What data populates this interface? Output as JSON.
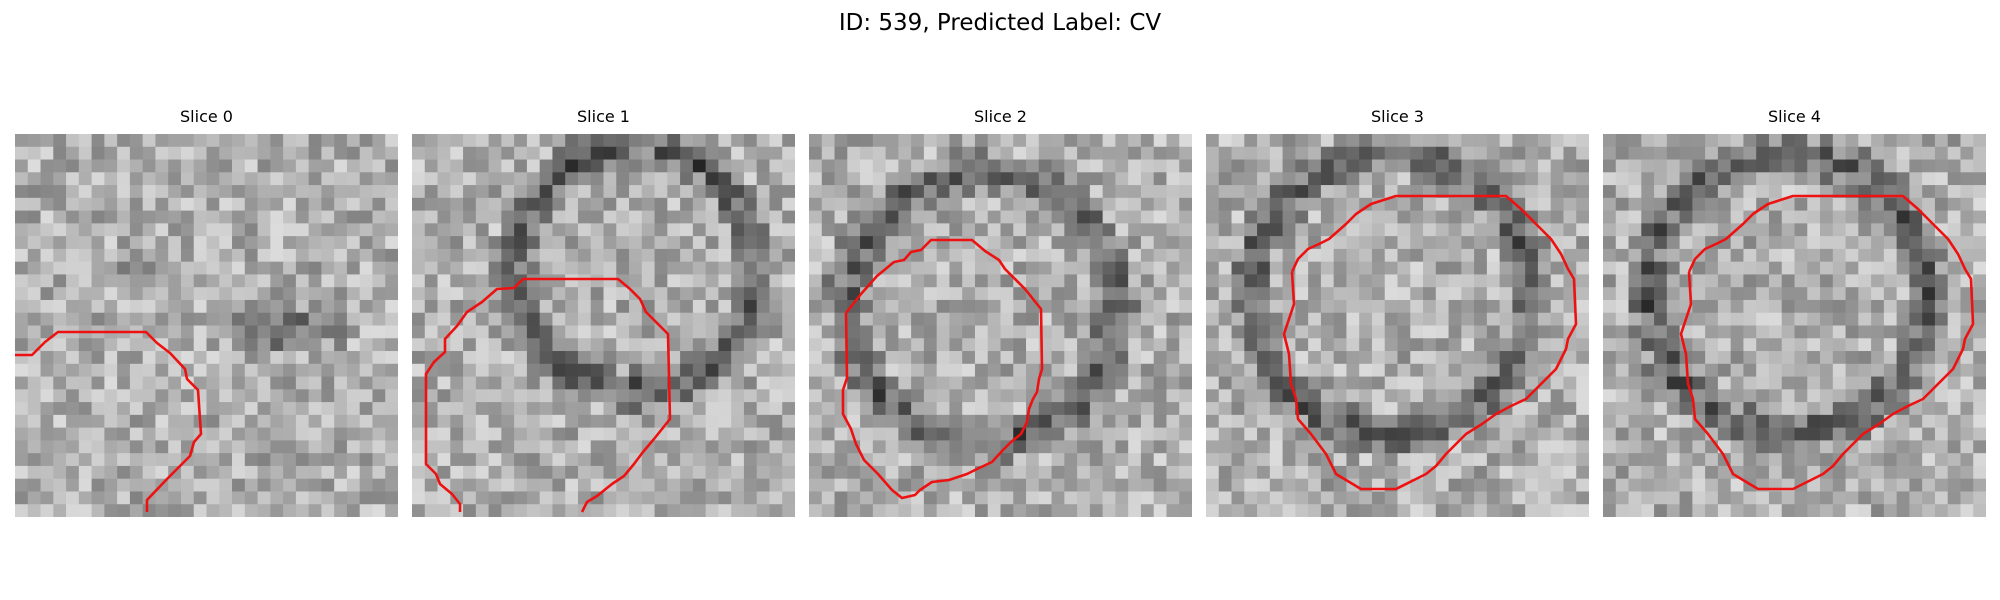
{
  "figure": {
    "title": "ID: 539, Predicted Label: CV"
  },
  "slices": [
    {
      "label": "Slice 0",
      "seed": 11,
      "darkness": "light"
    },
    {
      "label": "Slice 1",
      "seed": 23,
      "darkness": "ring"
    },
    {
      "label": "Slice 2",
      "seed": 37,
      "darkness": "ring"
    },
    {
      "label": "Slice 3",
      "seed": 41,
      "darkness": "light"
    },
    {
      "label": "Slice 4",
      "seed": 53,
      "darkness": "light"
    }
  ],
  "contour_color": "#ee1111",
  "colormap": "gray"
}
